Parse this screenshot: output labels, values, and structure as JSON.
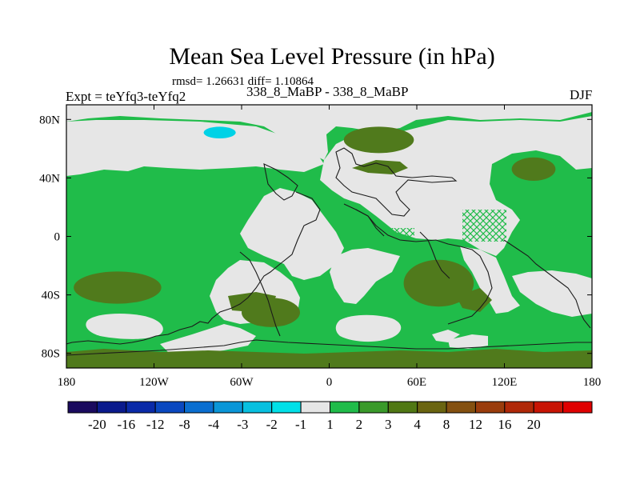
{
  "title": "Mean Sea Level Pressure (in hPa)",
  "stats": "rmsd= 1.26631 diff= 1.10864",
  "experiment": "Expt = teYfq3-teYfq2",
  "runs": "338_8_MaBP - 338_8_MaBP",
  "season": "DJF",
  "chart_data": {
    "type": "heatmap",
    "title": "Mean Sea Level Pressure (in hPa)",
    "xlim": [
      -180,
      180
    ],
    "ylim": [
      -90,
      90
    ],
    "x_ticks": [
      {
        "value": -180,
        "label": "180"
      },
      {
        "value": -120,
        "label": "120W"
      },
      {
        "value": -60,
        "label": "60W"
      },
      {
        "value": 0,
        "label": "0"
      },
      {
        "value": 60,
        "label": "60E"
      },
      {
        "value": 120,
        "label": "120E"
      },
      {
        "value": 180,
        "label": "180"
      }
    ],
    "y_ticks": [
      {
        "value": 80,
        "label": "80N"
      },
      {
        "value": 40,
        "label": "40N"
      },
      {
        "value": 0,
        "label": "0"
      },
      {
        "value": -40,
        "label": "40S"
      },
      {
        "value": -80,
        "label": "80S"
      }
    ],
    "colorbar": {
      "colors": [
        "#1a0a5e",
        "#0a1a8c",
        "#0a2aa8",
        "#0a48c0",
        "#0a6ed0",
        "#0a96d8",
        "#08c0e0",
        "#00e0e8",
        "#e6e6e6",
        "#20bc4a",
        "#3a9a2a",
        "#507814",
        "#6a6410",
        "#845010",
        "#9a3c0c",
        "#b02808",
        "#c81404",
        "#e00000"
      ],
      "labels": [
        "-20",
        "-16",
        "-12",
        "-8",
        "-4",
        "-3",
        "-2",
        "-1",
        "1",
        "2",
        "3",
        "4",
        "8",
        "12",
        "16",
        "20"
      ]
    },
    "regions": [
      {
        "name": "anomaly-negative-1",
        "level": "-1",
        "color": "#00d2e6",
        "lon": -75,
        "lat": 71,
        "rx": 11,
        "ry": 4
      },
      {
        "name": "anomaly-positive-4-north-atlantic-europe",
        "level": "4",
        "color": "#507a1c",
        "lon": 34,
        "lat": 66,
        "rx": 24,
        "ry": 9
      },
      {
        "name": "anomaly-positive-4-north-pacific",
        "level": "4",
        "color": "#507a1c",
        "lon": 140,
        "lat": 46,
        "rx": 15,
        "ry": 8
      },
      {
        "name": "anomaly-positive-4-south-pacific",
        "level": "4",
        "color": "#507a1c",
        "lon": -145,
        "lat": -35,
        "rx": 30,
        "ry": 11
      },
      {
        "name": "anomaly-positive-4-south-atlantic",
        "level": "4",
        "color": "#507a1c",
        "lon": -40,
        "lat": -52,
        "rx": 20,
        "ry": 10
      },
      {
        "name": "anomaly-positive-4-indian-ocean",
        "level": "4",
        "color": "#507a1c",
        "lon": 75,
        "lat": -32,
        "rx": 24,
        "ry": 16
      }
    ]
  }
}
